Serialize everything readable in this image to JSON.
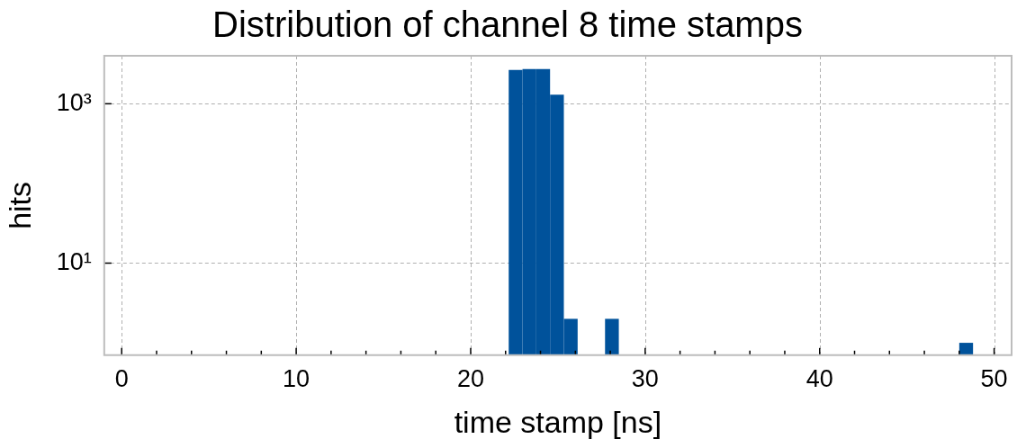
{
  "chart_data": {
    "type": "histogram",
    "title": "Distribution of channel 8 time stamps",
    "xlabel": "time stamp [ns]",
    "ylabel": "hits",
    "bins": [
      22.18,
      22.97,
      23.76,
      24.55,
      25.34,
      26.13,
      27.7,
      28.49,
      48.0,
      48.79
    ],
    "values": [
      2650,
      2730,
      2730,
      1300,
      2,
      null,
      2,
      null,
      1
    ],
    "color": "#00529b",
    "log": "y",
    "grid": true,
    "xlim": [
      0,
      50
    ],
    "xticks": [
      0,
      {
        "value": 2,
        "label": null
      },
      {
        "value": 4,
        "label": null
      },
      {
        "value": 6,
        "label": null
      },
      {
        "value": 8,
        "label": null
      },
      10,
      {
        "value": 12,
        "label": null
      },
      {
        "value": 14,
        "label": null
      },
      {
        "value": 16,
        "label": null
      },
      {
        "value": 18,
        "label": null
      },
      20,
      {
        "value": 22,
        "label": null
      },
      {
        "value": 24,
        "label": null
      },
      {
        "value": 26,
        "label": null
      },
      {
        "value": 28,
        "label": null
      },
      30,
      {
        "value": 32,
        "label": null
      },
      {
        "value": 34,
        "label": null
      },
      {
        "value": 36,
        "label": null
      },
      {
        "value": 38,
        "label": null
      },
      40,
      {
        "value": 42,
        "label": null
      },
      {
        "value": 44,
        "label": null
      },
      {
        "value": 46,
        "label": null
      },
      {
        "value": 48,
        "label": null
      },
      50
    ],
    "ylim": [
      0.7,
      4000
    ],
    "yticks": [
      {
        "value": 10,
        "label": "10¹"
      },
      {
        "value": 1000,
        "label": "10³"
      }
    ]
  }
}
